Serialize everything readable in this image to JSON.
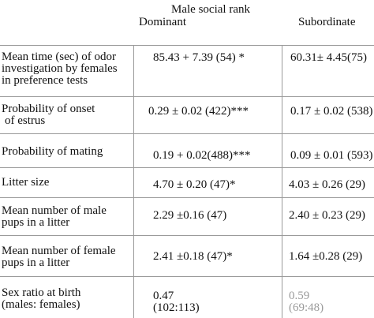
{
  "table": {
    "group_header": "Male social rank",
    "col_dominant": "Dominant",
    "col_subordinate": "Subordinate",
    "rows": [
      {
        "label_lines": [
          "Mean time (sec) of odor",
          "investigation by females",
          "in preference tests"
        ],
        "dominant": "85.43 + 7.39 (54) *",
        "subordinate": "60.31± 4.45(75)"
      },
      {
        "label_lines": [
          "Probability of onset",
          "of estrus"
        ],
        "dominant": "0.29 ± 0.02 (422)***",
        "subordinate": "0.17 ± 0.02 (538)"
      },
      {
        "label_lines": [
          "Probability of mating"
        ],
        "dominant": "0.19 + 0.02(488)***",
        "subordinate": "0.09 ± 0.01 (593)"
      },
      {
        "label_lines": [
          "Litter size"
        ],
        "dominant": "4.70 ± 0.20 (47)*",
        "subordinate": "4.03 ± 0.26 (29)"
      },
      {
        "label_lines": [
          "Mean number of male",
          "pups in a litter"
        ],
        "dominant": "2.29 ±0.16 (47)",
        "subordinate": "2.40 ± 0.23 (29)"
      },
      {
        "label_lines": [
          "Mean number of female",
          "pups in a litter"
        ],
        "dominant": "2.41 ±0.18 (47)*",
        "subordinate": "1.64 ±0.28 (29)"
      },
      {
        "label_lines": [
          "Sex ratio at birth",
          "(males: females)"
        ],
        "dominant_lines": [
          "0.47",
          "(102:113)"
        ],
        "subordinate_lines": [
          "0.59",
          "(69:48)"
        ]
      }
    ]
  }
}
